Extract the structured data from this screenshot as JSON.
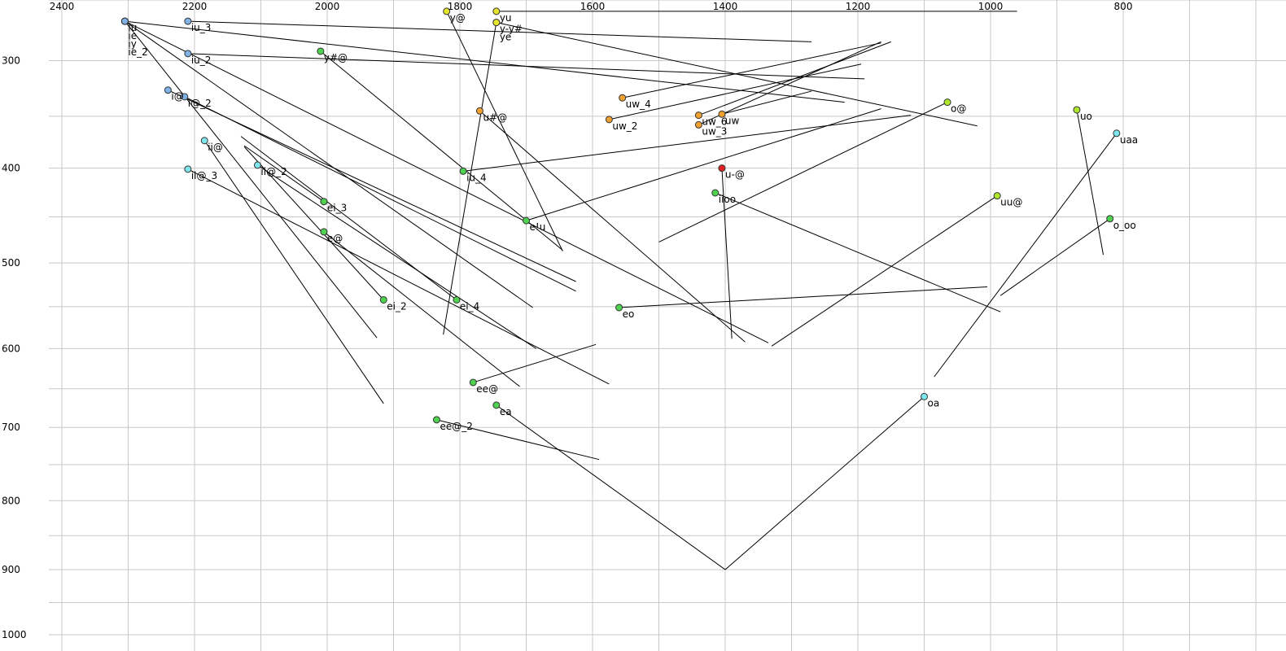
{
  "chart_data": {
    "type": "scatter",
    "title": "",
    "xlabel": "",
    "ylabel": "",
    "x_axis": {
      "reversed": true,
      "ticks": [
        2400,
        2200,
        2000,
        1800,
        1600,
        1400,
        1200,
        1000,
        800
      ]
    },
    "y_axis": {
      "reversed": true,
      "ticks": [
        300,
        400,
        500,
        600,
        700,
        800,
        900,
        1000
      ]
    },
    "grid": true,
    "legend": "none",
    "colors": {
      "blue": "#7fb2e6",
      "cyan": "#7fe6ee",
      "green": "#4fd24f",
      "yellow": "#e6e62e",
      "lime": "#aee62e",
      "orange": "#f0a030",
      "red": "#e02020"
    },
    "points": [
      {
        "label": "iu",
        "x": 2305,
        "y": 267,
        "color": "#7fb2e6",
        "tail": [
          1220,
          337
        ]
      },
      {
        "label": "ie",
        "x": 2305,
        "y": 267,
        "color": "#7fb2e6",
        "tail": [
          1335,
          593
        ]
      },
      {
        "label": "iy",
        "x": 2305,
        "y": 267,
        "color": "#7fb2e6",
        "tail": [
          1925,
          587
        ]
      },
      {
        "label": "ie_2",
        "x": 2305,
        "y": 267,
        "color": "#7fb2e6",
        "tail": [
          1690,
          551
        ]
      },
      {
        "label": "iu_3",
        "x": 2210,
        "y": 267,
        "color": "#7fb2e6",
        "tail": [
          1270,
          284
        ]
      },
      {
        "label": "iu_2",
        "x": 2210,
        "y": 294,
        "color": "#7fb2e6",
        "tail": [
          1190,
          316
        ]
      },
      {
        "label": "i@",
        "x": 2240,
        "y": 326,
        "color": "#7fb2e6",
        "tail": [
          1625,
          521
        ]
      },
      {
        "label": "i@_2",
        "x": 2215,
        "y": 332,
        "color": "#7fb2e6",
        "tail": [
          1625,
          532
        ]
      },
      {
        "label": "ii@",
        "x": 2185,
        "y": 373,
        "color": "#7fe6ee",
        "tail": [
          1915,
          669
        ]
      },
      {
        "label": "ii@_2",
        "x": 2105,
        "y": 397,
        "color": "#7fe6ee",
        "tail": [
          1685,
          600
        ]
      },
      {
        "label": "ii@_3",
        "x": 2210,
        "y": 401,
        "color": "#7fe6ee",
        "tail": [
          1575,
          644
        ]
      },
      {
        "label": "ei_3",
        "x": 2005,
        "y": 434,
        "color": "#4fd24f",
        "tail": [
          2125,
          378
        ]
      },
      {
        "label": "e@",
        "x": 2005,
        "y": 466,
        "color": "#4fd24f",
        "tail": [
          1710,
          647
        ]
      },
      {
        "label": "ei_2",
        "x": 1915,
        "y": 542,
        "color": "#4fd24f",
        "tail": [
          2125,
          379
        ]
      },
      {
        "label": "ei_4",
        "x": 1805,
        "y": 542,
        "color": "#4fd24f",
        "tail": [
          2130,
          369
        ]
      },
      {
        "label": "iu_4",
        "x": 1795,
        "y": 403,
        "color": "#4fd24f",
        "tail": [
          1120,
          349
        ]
      },
      {
        "label": "e!u",
        "x": 1700,
        "y": 454,
        "color": "#4fd24f",
        "tail": [
          1165,
          343
        ]
      },
      {
        "label": "eo",
        "x": 1560,
        "y": 551,
        "color": "#4fd24f",
        "tail": [
          1005,
          527
        ]
      },
      {
        "label": "iioo",
        "x": 1415,
        "y": 425,
        "color": "#4fd24f",
        "tail": [
          985,
          556
        ]
      },
      {
        "label": "ee@",
        "x": 1780,
        "y": 642,
        "color": "#4fd24f",
        "tail": [
          1595,
          595
        ]
      },
      {
        "label": "ea",
        "x": 1745,
        "y": 671,
        "color": "#4fd24f",
        "tail": [
          1400,
          900
        ]
      },
      {
        "label": "ee@_2",
        "x": 1835,
        "y": 690,
        "color": "#4fd24f",
        "tail": [
          1590,
          743
        ]
      },
      {
        "label": "y@",
        "x": 1820,
        "y": 259,
        "color": "#e6e62e",
        "tail": [
          1645,
          487
        ]
      },
      {
        "label": "yu",
        "x": 1745,
        "y": 259,
        "color": "#e6e62e",
        "tail": [
          960,
          259
        ]
      },
      {
        "label": "y-y#",
        "x": 1745,
        "y": 268,
        "color": "#e6e62e",
        "tail": [
          1020,
          359
        ]
      },
      {
        "label": "ye",
        "x": 1745,
        "y": 268,
        "color": "#e6e62e",
        "tail": [
          1825,
          583
        ]
      },
      {
        "label": "y#@",
        "x": 2010,
        "y": 292,
        "color": "#4fd24f",
        "tail": [
          1645,
          486
        ]
      },
      {
        "label": "u#@",
        "x": 1770,
        "y": 345,
        "color": "#f0a030",
        "tail": [
          1370,
          592
        ]
      },
      {
        "label": "uw_4",
        "x": 1555,
        "y": 333,
        "color": "#f0a030",
        "tail": [
          1165,
          285
        ]
      },
      {
        "label": "uw_2",
        "x": 1575,
        "y": 353,
        "color": "#f0a030",
        "tail": [
          1195,
          303
        ]
      },
      {
        "label": "uw_6",
        "x": 1440,
        "y": 349,
        "color": "#f0a030",
        "tail": [
          1150,
          284
        ]
      },
      {
        "label": "uw_3",
        "x": 1440,
        "y": 358,
        "color": "#f0a030",
        "tail": [
          1165,
          284
        ]
      },
      {
        "label": "uw",
        "x": 1405,
        "y": 348,
        "color": "#f0a030",
        "tail": [
          1270,
          327
        ]
      },
      {
        "label": "u-@",
        "x": 1405,
        "y": 400,
        "color": "#e02020",
        "tail": [
          1390,
          588
        ]
      },
      {
        "label": "o@",
        "x": 1065,
        "y": 337,
        "color": "#aee62e",
        "tail": [
          1500,
          477
        ]
      },
      {
        "label": "uu@",
        "x": 990,
        "y": 428,
        "color": "#aee62e",
        "tail": [
          1330,
          597
        ]
      },
      {
        "label": "uo",
        "x": 870,
        "y": 344,
        "color": "#aee62e",
        "tail": [
          830,
          491
        ]
      },
      {
        "label": "uaa",
        "x": 810,
        "y": 366,
        "color": "#7fe6ee",
        "tail": [
          1085,
          635
        ]
      },
      {
        "label": "o_oo",
        "x": 820,
        "y": 452,
        "color": "#4fd24f",
        "tail": [
          985,
          537
        ]
      },
      {
        "label": "oa",
        "x": 1100,
        "y": 660,
        "color": "#7fe6ee",
        "tail": [
          1400,
          900
        ]
      }
    ]
  }
}
